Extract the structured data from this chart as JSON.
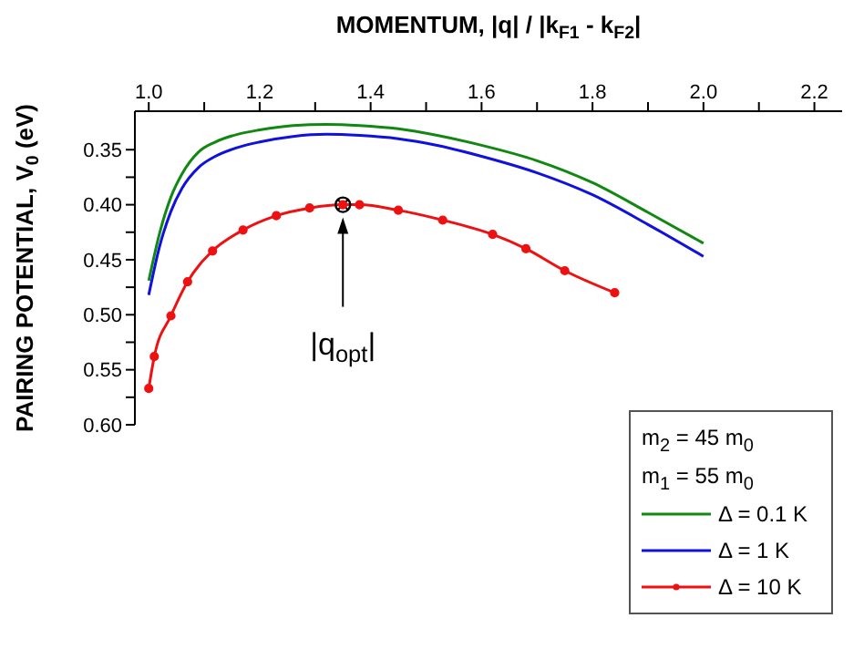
{
  "chart_data": {
    "type": "line",
    "xlabel": "MOMENTUM, |q| / |k$_{F1}$ - k$_{F2}$|",
    "ylabel": "PAIRING POTENTIAL, V$_{0}$ (eV)",
    "xlim": [
      0.975,
      2.25
    ],
    "xticks": [
      {
        "value": 1,
        "label": "1.0"
      },
      {
        "value": 1.1,
        "label": null
      },
      1.2,
      {
        "value": 1.3,
        "label": null
      },
      1.4,
      {
        "value": 1.5,
        "label": null
      },
      1.6,
      {
        "value": 1.7,
        "label": null
      },
      1.8,
      {
        "value": 1.9,
        "label": null
      },
      {
        "value": 2,
        "label": "2.0"
      },
      {
        "value": 2.1,
        "label": null
      },
      2.2
    ],
    "ylim": [
      0.6,
      0.315
    ],
    "yticks": [
      0.35,
      {
        "value": 0.375,
        "label": null
      },
      {
        "value": 0.4,
        "label": "0.40"
      },
      {
        "value": 0.425,
        "label": null
      },
      0.45,
      {
        "value": 0.475,
        "label": null
      },
      {
        "value": 0.5,
        "label": "0.50"
      },
      {
        "value": 0.525,
        "label": null
      },
      0.55,
      {
        "value": 0.575,
        "label": null
      },
      {
        "value": 0.6,
        "label": "0.60"
      }
    ],
    "legend": "bottom right",
    "annotations": [
      "m$_{2}$ = 45 m$_{0}$",
      "m$_{1}$ = 55 m$_{0}$",
      "|q$_{opt}$|"
    ],
    "series": [
      {
        "name": "Δ = 0.1 K",
        "color": "#118811",
        "marker": "none",
        "x": [
          1.0,
          1.02,
          1.04,
          1.06,
          1.09,
          1.12,
          1.16,
          1.2,
          1.26,
          1.32,
          1.38,
          1.45,
          1.52,
          1.6,
          1.7,
          1.8,
          1.9,
          2.0
        ],
        "values": [
          0.469,
          0.425,
          0.393,
          0.372,
          0.352,
          0.343,
          0.336,
          0.332,
          0.328,
          0.327,
          0.328,
          0.331,
          0.337,
          0.346,
          0.36,
          0.38,
          0.407,
          0.435
        ]
      },
      {
        "name": "Δ = 1 K",
        "color": "#1111dd",
        "marker": "none",
        "x": [
          1.0,
          1.02,
          1.04,
          1.06,
          1.09,
          1.12,
          1.16,
          1.2,
          1.26,
          1.32,
          1.38,
          1.45,
          1.52,
          1.6,
          1.7,
          1.8,
          1.9,
          2.0
        ],
        "values": [
          0.482,
          0.437,
          0.406,
          0.385,
          0.366,
          0.356,
          0.348,
          0.343,
          0.338,
          0.336,
          0.337,
          0.34,
          0.346,
          0.356,
          0.371,
          0.391,
          0.418,
          0.447
        ]
      },
      {
        "name": "Δ = 10 K",
        "color": "#ee1111",
        "marker": "circle",
        "x": [
          1.0,
          1.01,
          1.04,
          1.07,
          1.115,
          1.17,
          1.23,
          1.29,
          1.35,
          1.38,
          1.45,
          1.53,
          1.62,
          1.68,
          1.75,
          1.84
        ],
        "values": [
          0.567,
          0.538,
          0.501,
          0.47,
          0.442,
          0.423,
          0.41,
          0.403,
          0.4,
          0.4,
          0.405,
          0.414,
          0.427,
          0.44,
          0.46,
          0.48
        ]
      }
    ]
  }
}
